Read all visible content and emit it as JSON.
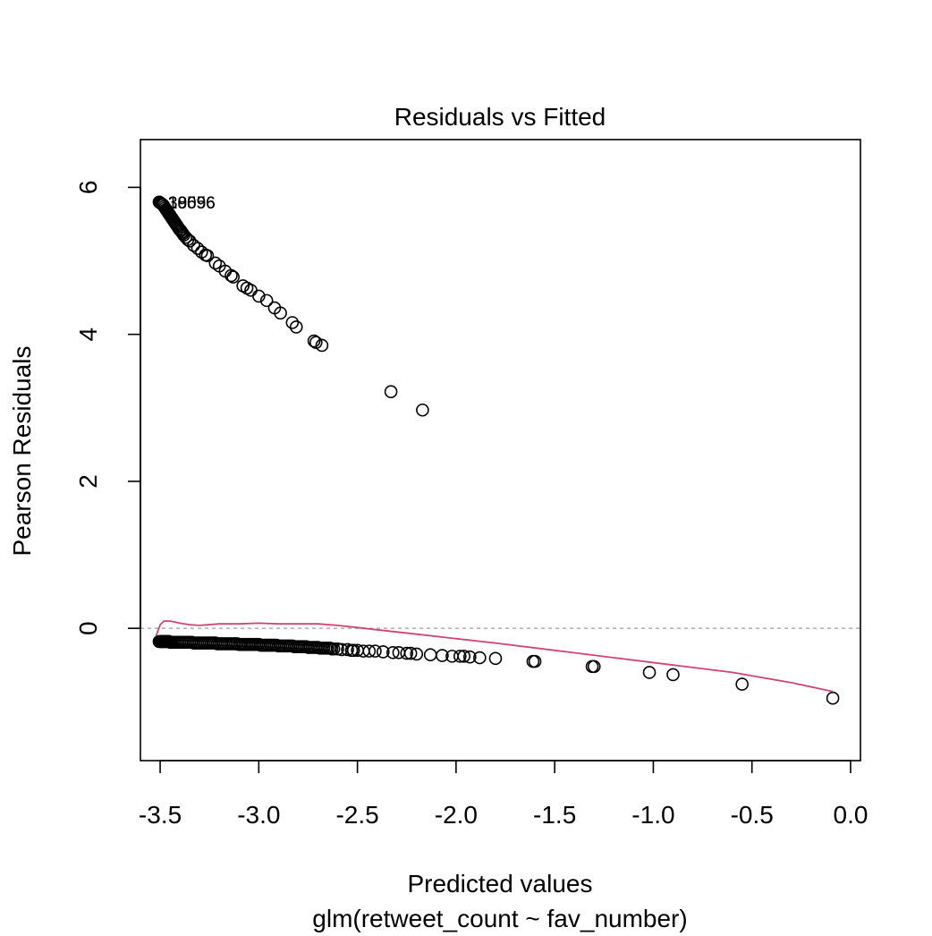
{
  "chart_data": {
    "type": "scatter",
    "title": "Residuals vs Fitted",
    "xlabel": "Predicted values",
    "xsublabel": "glm(retweet_count ~ fav_number)",
    "ylabel": "Pearson Residuals",
    "xlim": [
      -3.6,
      0.05
    ],
    "ylim": [
      -1.8,
      6.65
    ],
    "xticks": [
      -3.5,
      -3.0,
      -2.5,
      -2.0,
      -1.5,
      -1.0,
      -0.5,
      0.0
    ],
    "xtick_labels": [
      "-3.5",
      "-3.0",
      "-2.5",
      "-2.0",
      "-1.5",
      "-1.0",
      "-0.5",
      "0.0"
    ],
    "yticks": [
      0,
      2,
      4,
      6
    ],
    "ytick_labels": [
      "0",
      "2",
      "4",
      "6"
    ],
    "reference_line": {
      "y": 0,
      "color": "#b3b3b3",
      "style": "dashed"
    },
    "smooth_color": "#d0456b",
    "point_color": "#000000",
    "point_labels": [
      {
        "text": "30056",
        "x": -3.46,
        "y": 5.8
      },
      {
        "text": "19696",
        "x": -3.46,
        "y": 5.8
      },
      {
        "text": "38596",
        "x": -3.46,
        "y": 5.8
      }
    ],
    "series": [
      {
        "kind": "points",
        "x": [
          -3.505,
          -3.5,
          -3.495,
          -3.49,
          -3.485,
          -3.48,
          -3.475,
          -3.47,
          -3.465,
          -3.46,
          -3.455,
          -3.45,
          -3.445,
          -3.44,
          -3.435,
          -3.43,
          -3.425,
          -3.42,
          -3.415,
          -3.41,
          -3.405,
          -3.4,
          -3.395,
          -3.39,
          -3.385,
          -3.38,
          -3.37,
          -3.36,
          -3.35,
          -3.33,
          -3.31,
          -3.29,
          -3.27,
          -3.26,
          -3.22,
          -3.2,
          -3.17,
          -3.14,
          -3.13,
          -3.08,
          -3.06,
          -3.04,
          -3.0,
          -2.96,
          -2.92,
          -2.89,
          -2.83,
          -2.81,
          -2.72,
          -2.71,
          -2.68,
          -2.33,
          -2.17
        ],
        "y": [
          5.8,
          5.79,
          5.78,
          5.77,
          5.76,
          5.74,
          5.72,
          5.7,
          5.68,
          5.66,
          5.64,
          5.62,
          5.6,
          5.58,
          5.56,
          5.54,
          5.52,
          5.5,
          5.48,
          5.46,
          5.44,
          5.42,
          5.41,
          5.39,
          5.37,
          5.35,
          5.32,
          5.29,
          5.27,
          5.21,
          5.17,
          5.12,
          5.08,
          5.07,
          4.97,
          4.93,
          4.86,
          4.8,
          4.78,
          4.66,
          4.63,
          4.6,
          4.52,
          4.46,
          4.36,
          4.29,
          4.16,
          4.1,
          3.91,
          3.89,
          3.85,
          3.22,
          2.97
        ]
      },
      {
        "kind": "points",
        "x": [
          -3.505,
          -3.5,
          -3.495,
          -3.49,
          -3.485,
          -3.48,
          -3.475,
          -3.47,
          -3.465,
          -3.46,
          -3.455,
          -3.45,
          -3.445,
          -3.44,
          -3.43,
          -3.42,
          -3.41,
          -3.4,
          -3.39,
          -3.38,
          -3.37,
          -3.36,
          -3.35,
          -3.34,
          -3.33,
          -3.32,
          -3.31,
          -3.3,
          -3.29,
          -3.28,
          -3.27,
          -3.26,
          -3.25,
          -3.24,
          -3.23,
          -3.22,
          -3.21,
          -3.2,
          -3.19,
          -3.18,
          -3.17,
          -3.16,
          -3.15,
          -3.14,
          -3.13,
          -3.12,
          -3.11,
          -3.1,
          -3.09,
          -3.08,
          -3.07,
          -3.06,
          -3.05,
          -3.04,
          -3.03,
          -3.02,
          -3.01,
          -3.0,
          -2.99,
          -2.98,
          -2.97,
          -2.96,
          -2.95,
          -2.94,
          -2.93,
          -2.92,
          -2.91,
          -2.9,
          -2.89,
          -2.88,
          -2.87,
          -2.86,
          -2.85,
          -2.84,
          -2.83,
          -2.82,
          -2.81,
          -2.8,
          -2.79,
          -2.78,
          -2.77,
          -2.76,
          -2.75,
          -2.74,
          -2.73,
          -2.72,
          -2.71,
          -2.7,
          -2.69,
          -2.68,
          -2.67,
          -2.66,
          -2.65,
          -2.64,
          -2.63,
          -2.62,
          -2.6,
          -2.58,
          -2.55,
          -2.53,
          -2.52,
          -2.5,
          -2.47,
          -2.44,
          -2.41,
          -2.37,
          -2.32,
          -2.29,
          -2.25,
          -2.23,
          -2.2,
          -2.13,
          -2.07,
          -2.02,
          -1.98,
          -1.96,
          -1.93,
          -1.88,
          -1.8,
          -1.61,
          -1.6,
          -1.31,
          -1.3,
          -1.02,
          -0.9,
          -0.55,
          -0.09
        ],
        "y": [
          -0.18,
          -0.18,
          -0.18,
          -0.18,
          -0.18,
          -0.18,
          -0.18,
          -0.18,
          -0.18,
          -0.18,
          -0.18,
          -0.19,
          -0.19,
          -0.19,
          -0.19,
          -0.19,
          -0.19,
          -0.19,
          -0.19,
          -0.19,
          -0.19,
          -0.19,
          -0.19,
          -0.19,
          -0.2,
          -0.2,
          -0.2,
          -0.2,
          -0.2,
          -0.2,
          -0.2,
          -0.2,
          -0.2,
          -0.2,
          -0.2,
          -0.2,
          -0.21,
          -0.21,
          -0.21,
          -0.21,
          -0.21,
          -0.21,
          -0.21,
          -0.21,
          -0.21,
          -0.21,
          -0.21,
          -0.22,
          -0.22,
          -0.22,
          -0.22,
          -0.22,
          -0.22,
          -0.22,
          -0.22,
          -0.22,
          -0.22,
          -0.22,
          -0.23,
          -0.23,
          -0.23,
          -0.23,
          -0.23,
          -0.23,
          -0.23,
          -0.23,
          -0.23,
          -0.24,
          -0.24,
          -0.24,
          -0.24,
          -0.24,
          -0.24,
          -0.24,
          -0.24,
          -0.25,
          -0.25,
          -0.25,
          -0.25,
          -0.25,
          -0.25,
          -0.25,
          -0.26,
          -0.26,
          -0.26,
          -0.26,
          -0.26,
          -0.26,
          -0.27,
          -0.27,
          -0.27,
          -0.27,
          -0.27,
          -0.27,
          -0.28,
          -0.28,
          -0.28,
          -0.29,
          -0.29,
          -0.3,
          -0.3,
          -0.3,
          -0.31,
          -0.31,
          -0.31,
          -0.32,
          -0.33,
          -0.33,
          -0.34,
          -0.34,
          -0.35,
          -0.36,
          -0.37,
          -0.38,
          -0.38,
          -0.38,
          -0.39,
          -0.4,
          -0.41,
          -0.45,
          -0.45,
          -0.52,
          -0.52,
          -0.6,
          -0.63,
          -0.76,
          -0.95
        ]
      },
      {
        "kind": "smooth",
        "x": [
          -3.52,
          -3.5,
          -3.48,
          -3.45,
          -3.4,
          -3.35,
          -3.3,
          -3.2,
          -3.1,
          -3.0,
          -2.9,
          -2.8,
          -2.7,
          -2.6,
          -2.5,
          -2.4,
          -2.2,
          -2.0,
          -1.8,
          -1.5,
          -1.2,
          -0.9,
          -0.6,
          -0.3,
          -0.09
        ],
        "y": [
          -0.1,
          0.05,
          0.1,
          0.1,
          0.07,
          0.05,
          0.04,
          0.06,
          0.06,
          0.07,
          0.06,
          0.06,
          0.06,
          0.04,
          0.01,
          -0.02,
          -0.08,
          -0.14,
          -0.2,
          -0.3,
          -0.4,
          -0.5,
          -0.6,
          -0.74,
          -0.86
        ]
      }
    ]
  }
}
